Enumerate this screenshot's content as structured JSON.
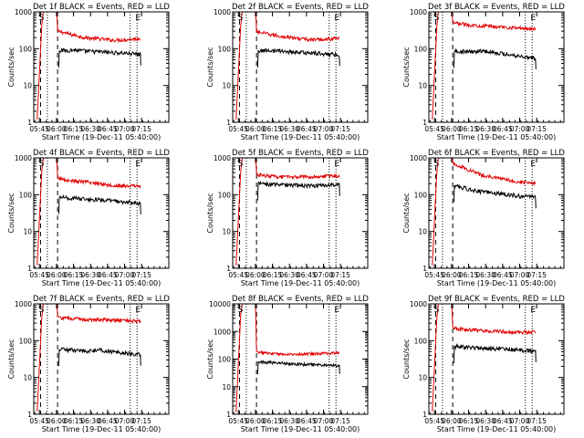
{
  "figure": {
    "ylabel": "Counts/sec",
    "xlabel": "Start Time (19-Dec-11 05:40:00)",
    "x_tick_labels": [
      "05:45",
      "06:00",
      "06:15",
      "06:30",
      "06:45",
      "07:00",
      "07:15"
    ],
    "y_tick_labels": [
      "1",
      "10",
      "100",
      "1000"
    ],
    "y_tick_labels_extended": [
      "1",
      "10",
      "100",
      "1000",
      "10000"
    ],
    "marker_s": "S",
    "marker_e": "E",
    "colors": {
      "events": "#000000",
      "lld": "#e00000",
      "axis": "#000000"
    }
  },
  "chart_data": [
    {
      "type": "line",
      "title": "Det 1f BLACK = Events, RED = LLD",
      "xlabel": "Start Time (19-Dec-11 05:40:00)",
      "ylabel": "Counts/sec",
      "x_range": [
        "05:40",
        "07:19"
      ],
      "ylim": [
        1,
        1000
      ],
      "y_scale": "log",
      "events_level": [
        88,
        92,
        85,
        82,
        78,
        75,
        70
      ],
      "lld_level": [
        300,
        240,
        200,
        185,
        170,
        175,
        190
      ]
    },
    {
      "type": "line",
      "title": "Det 2f BLACK = Events, RED = LLD",
      "xlabel": "Start Time (19-Dec-11 05:40:00)",
      "ylabel": "Counts/sec",
      "x_range": [
        "05:40",
        "07:19"
      ],
      "ylim": [
        1,
        1000
      ],
      "y_scale": "log",
      "events_level": [
        88,
        90,
        84,
        80,
        76,
        72,
        68
      ],
      "lld_level": [
        290,
        240,
        210,
        190,
        175,
        180,
        195
      ]
    },
    {
      "type": "line",
      "title": "Det 3f BLACK = Events, RED = LLD",
      "xlabel": "Start Time (19-Dec-11 05:40:00)",
      "ylabel": "Counts/sec",
      "x_range": [
        "05:40",
        "07:19"
      ],
      "ylim": [
        1,
        1000
      ],
      "y_scale": "log",
      "events_level": [
        85,
        82,
        88,
        78,
        70,
        62,
        55
      ],
      "lld_level": [
        500,
        450,
        420,
        400,
        380,
        360,
        350
      ]
    },
    {
      "type": "line",
      "title": "Det 4f BLACK = Events, RED = LLD",
      "xlabel": "Start Time (19-Dec-11 05:40:00)",
      "ylabel": "Counts/sec",
      "x_range": [
        "05:40",
        "07:19"
      ],
      "ylim": [
        1,
        1000
      ],
      "y_scale": "log",
      "events_level": [
        85,
        80,
        75,
        72,
        68,
        62,
        58
      ],
      "lld_level": [
        280,
        240,
        220,
        200,
        180,
        170,
        175
      ]
    },
    {
      "type": "line",
      "title": "Det 5f BLACK = Events, RED = LLD",
      "xlabel": "Start Time (19-Dec-11 05:40:00)",
      "ylabel": "Counts/sec",
      "x_range": [
        "05:40",
        "07:19"
      ],
      "ylim": [
        1,
        1000
      ],
      "y_scale": "log",
      "events_level": [
        200,
        190,
        185,
        180,
        175,
        180,
        185
      ],
      "lld_level": [
        350,
        320,
        300,
        300,
        310,
        320,
        330
      ]
    },
    {
      "type": "line",
      "title": "Det 6f BLACK = Events, RED = LLD",
      "xlabel": "Start Time (19-Dec-11 05:40:00)",
      "ylabel": "Counts/sec",
      "x_range": [
        "05:40",
        "07:19"
      ],
      "ylim": [
        1,
        1000
      ],
      "y_scale": "log",
      "events_level": [
        180,
        140,
        120,
        110,
        100,
        90,
        85
      ],
      "lld_level": [
        700,
        500,
        350,
        290,
        250,
        220,
        210
      ]
    },
    {
      "type": "line",
      "title": "Det 7f BLACK = Events, RED = LLD",
      "xlabel": "Start Time (19-Dec-11 05:40:00)",
      "ylabel": "Counts/sec",
      "x_range": [
        "05:40",
        "07:19"
      ],
      "ylim": [
        1,
        1000
      ],
      "y_scale": "log",
      "events_level": [
        58,
        55,
        52,
        55,
        50,
        45,
        42
      ],
      "lld_level": [
        420,
        400,
        370,
        380,
        360,
        350,
        330
      ]
    },
    {
      "type": "line",
      "title": "Det 8f BLACK = Events, RED = LLD",
      "xlabel": "Start Time (19-Dec-11 05:40:00)",
      "ylabel": "Counts/sec",
      "x_range": [
        "05:40",
        "07:19"
      ],
      "ylim": [
        1,
        10000
      ],
      "y_scale": "log",
      "events_level": [
        80,
        75,
        70,
        65,
        62,
        60,
        58
      ],
      "lld_level": [
        180,
        160,
        150,
        150,
        155,
        160,
        170
      ]
    },
    {
      "type": "line",
      "title": "Det 9f BLACK = Events, RED = LLD",
      "xlabel": "Start Time (19-Dec-11 05:40:00)",
      "ylabel": "Counts/sec",
      "x_range": [
        "05:40",
        "07:19"
      ],
      "ylim": [
        1,
        1000
      ],
      "y_scale": "log",
      "events_level": [
        70,
        65,
        62,
        60,
        58,
        55,
        52
      ],
      "lld_level": [
        220,
        200,
        190,
        180,
        175,
        170,
        175
      ]
    }
  ]
}
